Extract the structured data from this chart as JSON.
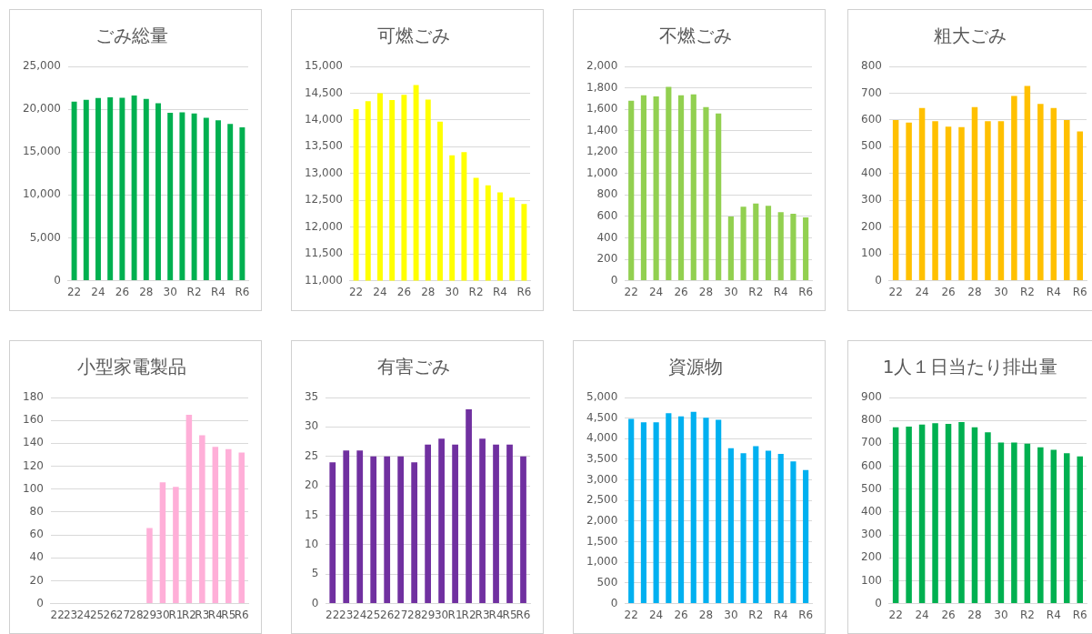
{
  "chart_data": [
    {
      "type": "bar",
      "title": "ごみ総量",
      "categories": [
        "22",
        null,
        "24",
        null,
        "26",
        null,
        "28",
        null,
        "30",
        null,
        "R2",
        null,
        "R4",
        null,
        "R6"
      ],
      "color": "#00b050",
      "values": [
        20900,
        21100,
        21300,
        21400,
        21350,
        21600,
        21200,
        20700,
        19600,
        19650,
        19500,
        19000,
        18700,
        18300,
        17900
      ],
      "ylim": [
        0,
        25000
      ],
      "yticks": [
        0,
        {
          "value": 5000,
          "label": "5,000"
        },
        {
          "value": 10000,
          "label": "10,000"
        },
        {
          "value": 15000,
          "label": "15,000"
        },
        {
          "value": 20000,
          "label": "20,000"
        },
        {
          "value": 25000,
          "label": "25,000"
        }
      ],
      "grid": "y"
    },
    {
      "type": "bar",
      "title": "可燃ごみ",
      "categories": [
        "22",
        null,
        "24",
        null,
        "26",
        null,
        "28",
        null,
        "30",
        null,
        "R2",
        null,
        "R4",
        null,
        "R6"
      ],
      "color": "#ffff00",
      "values": [
        14200,
        14350,
        14500,
        14370,
        14470,
        14650,
        14380,
        13970,
        13340,
        13400,
        12920,
        12780,
        12650,
        12550,
        12430
      ],
      "ylim": [
        11000,
        15000
      ],
      "yticks": [
        {
          "value": 11000,
          "label": "11,000"
        },
        {
          "value": 11500,
          "label": "11,500"
        },
        {
          "value": 12000,
          "label": "12,000"
        },
        {
          "value": 12500,
          "label": "12,500"
        },
        {
          "value": 13000,
          "label": "13,000"
        },
        {
          "value": 13500,
          "label": "13,500"
        },
        {
          "value": 14000,
          "label": "14,000"
        },
        {
          "value": 14500,
          "label": "14,500"
        },
        {
          "value": 15000,
          "label": "15,000"
        }
      ],
      "grid": "y"
    },
    {
      "type": "bar",
      "title": "不燃ごみ",
      "categories": [
        "22",
        null,
        "24",
        null,
        "26",
        null,
        "28",
        null,
        "30",
        null,
        "R2",
        null,
        "R4",
        null,
        "R6"
      ],
      "color": "#92d050",
      "values": [
        1680,
        1730,
        1720,
        1810,
        1730,
        1740,
        1620,
        1560,
        600,
        690,
        720,
        700,
        640,
        625,
        590
      ],
      "ylim": [
        0,
        2000
      ],
      "yticks": [
        0,
        200,
        400,
        600,
        800,
        {
          "value": 1000,
          "label": "1,000"
        },
        {
          "value": 1200,
          "label": "1,200"
        },
        {
          "value": 1400,
          "label": "1,400"
        },
        {
          "value": 1600,
          "label": "1,600"
        },
        {
          "value": 1800,
          "label": "1,800"
        },
        {
          "value": 2000,
          "label": "2,000"
        }
      ],
      "grid": "y"
    },
    {
      "type": "bar",
      "title": "粗大ごみ",
      "categories": [
        "22",
        null,
        "24",
        null,
        "26",
        null,
        "28",
        null,
        "30",
        null,
        "R2",
        null,
        "R4",
        null,
        "R6"
      ],
      "color": "#ffc000",
      "values": [
        600,
        590,
        645,
        595,
        575,
        573,
        648,
        595,
        595,
        690,
        727,
        660,
        645,
        600,
        557
      ],
      "ylim": [
        0,
        800
      ],
      "yticks": [
        0,
        100,
        200,
        300,
        400,
        500,
        600,
        700,
        800
      ],
      "grid": "y"
    },
    {
      "type": "bar",
      "title": "小型家電製品",
      "categories": [
        "22",
        "23",
        "24",
        "25",
        "26",
        "27",
        "28",
        "29",
        "30",
        "R1",
        "R2",
        "R3",
        "R4",
        "R5",
        "R6"
      ],
      "color": "#ffafd8",
      "values": [
        null,
        null,
        null,
        null,
        null,
        null,
        null,
        66,
        106,
        102,
        165,
        147,
        137,
        135,
        132
      ],
      "ylim": [
        0,
        180
      ],
      "yticks": [
        0,
        20,
        40,
        60,
        80,
        100,
        120,
        140,
        160,
        180
      ],
      "grid": "y"
    },
    {
      "type": "bar",
      "title": "有害ごみ",
      "categories": [
        "22",
        "23",
        "24",
        "25",
        "26",
        "27",
        "28",
        "29",
        "30",
        "R1",
        "R2",
        "R3",
        "R4",
        "R5",
        "R6"
      ],
      "color": "#7030a0",
      "values": [
        24,
        26,
        26,
        25,
        25,
        25,
        24,
        27,
        28,
        27,
        33,
        28,
        27,
        27,
        25
      ],
      "ylim": [
        0,
        35
      ],
      "yticks": [
        0,
        5,
        10,
        15,
        20,
        25,
        30,
        35
      ],
      "grid": "y"
    },
    {
      "type": "bar",
      "title": "資源物",
      "categories": [
        "22",
        null,
        "24",
        null,
        "26",
        null,
        "28",
        null,
        "30",
        null,
        "R2",
        null,
        "R4",
        null,
        "R6"
      ],
      "color": "#00b0f0",
      "values": [
        4480,
        4400,
        4400,
        4620,
        4540,
        4650,
        4510,
        4460,
        3770,
        3650,
        3820,
        3710,
        3630,
        3450,
        3240
      ],
      "ylim": [
        0,
        5000
      ],
      "yticks": [
        0,
        500,
        {
          "value": 1000,
          "label": "1,000"
        },
        {
          "value": 1500,
          "label": "1,500"
        },
        {
          "value": 2000,
          "label": "2,000"
        },
        {
          "value": 2500,
          "label": "2,500"
        },
        {
          "value": 3000,
          "label": "3,000"
        },
        {
          "value": 3500,
          "label": "3,500"
        },
        {
          "value": 4000,
          "label": "4,000"
        },
        {
          "value": 4500,
          "label": "4,500"
        },
        {
          "value": 5000,
          "label": "5,000"
        }
      ],
      "grid": "y"
    },
    {
      "type": "bar",
      "title": "1人１日当たり排出量",
      "categories": [
        "22",
        null,
        "24",
        null,
        "26",
        null,
        "28",
        null,
        "30",
        null,
        "R2",
        null,
        "R4",
        null,
        "R6"
      ],
      "color": "#00b050",
      "values": [
        770,
        773,
        782,
        788,
        785,
        793,
        770,
        748,
        703,
        703,
        698,
        683,
        672,
        657,
        643
      ],
      "ylim": [
        0,
        900
      ],
      "yticks": [
        0,
        100,
        200,
        300,
        400,
        500,
        600,
        700,
        800,
        900
      ],
      "grid": "y"
    }
  ]
}
